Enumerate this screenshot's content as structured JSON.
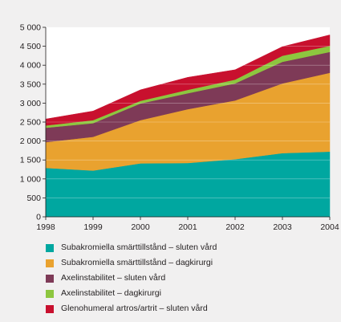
{
  "chart_data": {
    "type": "area",
    "stacked": true,
    "x": [
      1998,
      1999,
      2000,
      2001,
      2002,
      2003,
      2004
    ],
    "x_tick_labels": [
      "1998",
      "1999",
      "2000",
      "2001",
      "2002",
      "2003",
      "2004"
    ],
    "ylim": [
      0,
      5000
    ],
    "y_ticks": [
      0,
      500,
      1000,
      1500,
      2000,
      2500,
      3000,
      3500,
      4000,
      4500,
      5000
    ],
    "y_tick_labels": [
      "0",
      "500",
      "1 000",
      "1 500",
      "2 000",
      "2 500",
      "3 000",
      "3 500",
      "4 000",
      "4 500",
      "5 000"
    ],
    "grid": "horizontal",
    "legend_position": "bottom",
    "series": [
      {
        "name": "Subakromiella smärttillstånd – sluten vård",
        "color": "#00a7a0",
        "values": [
          1290,
          1220,
          1410,
          1420,
          1520,
          1680,
          1720
        ]
      },
      {
        "name": "Subakromiella smärttillstånd – dagkirurgi",
        "color": "#e9a22f",
        "values": [
          680,
          890,
          1140,
          1420,
          1550,
          1840,
          2080
        ]
      },
      {
        "name": "Axelinstabilitet – sluten vård",
        "color": "#7e3a57",
        "values": [
          380,
          360,
          440,
          420,
          450,
          570,
          550
        ]
      },
      {
        "name": "Axelinstabilitet – dagkirurgi",
        "color": "#8dc63f",
        "values": [
          60,
          80,
          70,
          90,
          100,
          160,
          160
        ]
      },
      {
        "name": "Glenohumeral artros/artrit – sluten vård",
        "color": "#c8102e",
        "values": [
          170,
          240,
          290,
          330,
          260,
          240,
          290
        ]
      }
    ]
  }
}
